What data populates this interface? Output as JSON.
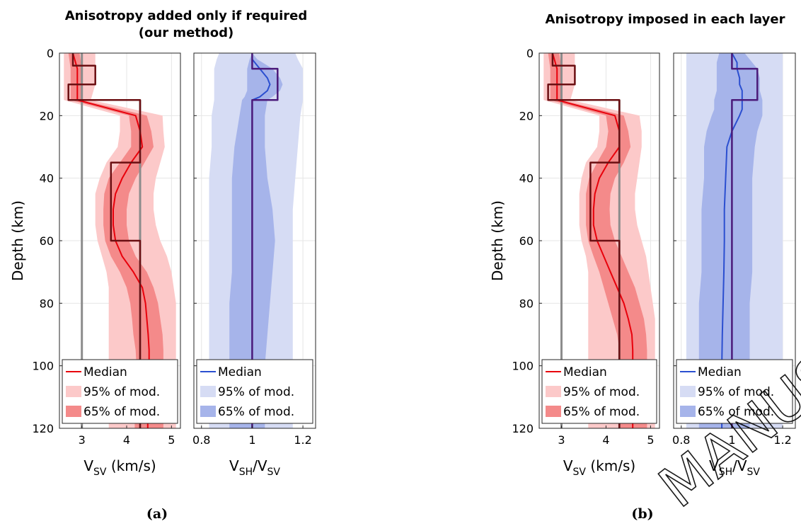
{
  "figure": {
    "titles": [
      [
        "Anisotropy added only if required",
        "(our method)"
      ],
      [
        "Anisotropy imposed in each layer"
      ]
    ],
    "panel_labels": [
      "(a)",
      "(b)"
    ],
    "watermark": "MANUSCRIPT"
  },
  "axes": {
    "ylabel": "Depth (km)",
    "depth_ticks": [
      "0",
      "20",
      "40",
      "60",
      "80",
      "100",
      "120"
    ],
    "vsv_xlabel": "V_SV (km/s)",
    "vsv_ticks": [
      "3",
      "4",
      "5"
    ],
    "aniso_xlabel": "V_SH/V_SV",
    "aniso_ticks": [
      "0.8",
      "1",
      "1.2"
    ]
  },
  "legend": {
    "median": "Median",
    "p95": "95% of mod.",
    "p65": "65% of mod."
  },
  "colors": {
    "vsv_median": "#e8000b",
    "vsv_band95": "#fcc9c9",
    "vsv_band65": "#f48a8a",
    "vsv_true": "#6b0f12",
    "vsv_initial": "#8c8c8c",
    "aniso_median": "#2b4fd0",
    "aniso_band95": "#d6dcf4",
    "aniso_band65": "#a6b4ea",
    "aniso_true": "#4b1a7a"
  },
  "chart_data": [
    {
      "panel": "a-left",
      "type": "area",
      "xlabel": "V_SV (km/s)",
      "ylabel": "Depth (km)",
      "xlim": [
        2.5,
        5.2
      ],
      "ylim": [
        120,
        0
      ],
      "grid": true,
      "legend_position": "bottom",
      "depth": [
        0,
        5,
        10,
        15,
        20,
        25,
        30,
        35,
        40,
        45,
        50,
        55,
        60,
        65,
        70,
        75,
        80,
        85,
        90,
        95,
        100,
        105,
        110,
        115,
        120
      ],
      "median": [
        2.8,
        2.9,
        2.9,
        2.9,
        4.2,
        4.3,
        4.35,
        4.1,
        3.9,
        3.75,
        3.7,
        3.7,
        3.75,
        3.9,
        4.15,
        4.35,
        4.42,
        4.45,
        4.48,
        4.5,
        4.5,
        4.48,
        4.47,
        4.47,
        4.47
      ],
      "band95": {
        "lo": [
          2.6,
          2.6,
          2.6,
          2.6,
          3.85,
          3.85,
          3.8,
          3.55,
          3.4,
          3.3,
          3.3,
          3.3,
          3.35,
          3.45,
          3.55,
          3.6,
          3.6,
          3.6,
          3.6,
          3.6,
          3.6,
          3.6,
          3.6,
          3.6,
          3.6
        ],
        "hi": [
          3.3,
          3.3,
          3.3,
          3.2,
          4.8,
          4.82,
          4.85,
          4.75,
          4.65,
          4.6,
          4.6,
          4.65,
          4.75,
          4.9,
          5.0,
          5.05,
          5.1,
          5.1,
          5.1,
          5.1,
          5.1,
          5.1,
          5.1,
          5.1,
          5.1
        ]
      },
      "band65": {
        "lo": [
          2.7,
          2.75,
          2.75,
          2.75,
          4.05,
          4.1,
          4.1,
          3.85,
          3.6,
          3.5,
          3.48,
          3.48,
          3.52,
          3.65,
          3.85,
          4.0,
          4.08,
          4.12,
          4.15,
          4.2,
          4.22,
          4.2,
          4.18,
          4.18,
          4.18
        ],
        "hi": [
          2.95,
          3.0,
          3.0,
          3.0,
          4.45,
          4.55,
          4.6,
          4.4,
          4.2,
          4.05,
          4.0,
          4.0,
          4.05,
          4.2,
          4.45,
          4.6,
          4.7,
          4.75,
          4.8,
          4.82,
          4.82,
          4.82,
          4.82,
          4.82,
          4.82
        ]
      },
      "true_model": {
        "depth": [
          0,
          4,
          4,
          10,
          10,
          15,
          15,
          35,
          35,
          60,
          60,
          120
        ],
        "value": [
          2.8,
          2.8,
          3.3,
          3.3,
          2.7,
          2.7,
          4.3,
          4.3,
          3.65,
          3.65,
          4.3,
          4.3
        ]
      },
      "initial_model": {
        "depth": [
          0,
          120
        ],
        "value": [
          3.0,
          3.0
        ],
        "second": {
          "depth": [
            15,
            120
          ],
          "value": [
            4.3,
            4.3
          ]
        }
      }
    },
    {
      "panel": "a-right",
      "type": "area",
      "xlabel": "V_SH/V_SV",
      "ylabel": "",
      "xlim": [
        0.77,
        1.25
      ],
      "ylim": [
        120,
        0
      ],
      "grid": true,
      "legend_position": "bottom",
      "depth": [
        0,
        2,
        5,
        8,
        10,
        12,
        14,
        15,
        20,
        30,
        40,
        50,
        60,
        70,
        80,
        90,
        100,
        110,
        120
      ],
      "median": [
        1.0,
        1.0,
        1.03,
        1.06,
        1.07,
        1.06,
        1.03,
        1.0,
        1.0,
        1.0,
        1.0,
        1.0,
        1.0,
        1.0,
        1.0,
        1.0,
        1.0,
        1.0,
        1.0
      ],
      "band95": {
        "lo": [
          0.87,
          0.86,
          0.85,
          0.85,
          0.85,
          0.85,
          0.85,
          0.85,
          0.84,
          0.84,
          0.83,
          0.83,
          0.83,
          0.83,
          0.83,
          0.83,
          0.83,
          0.83,
          0.83
        ],
        "hi": [
          1.17,
          1.18,
          1.2,
          1.2,
          1.2,
          1.2,
          1.2,
          1.2,
          1.19,
          1.18,
          1.17,
          1.16,
          1.16,
          1.16,
          1.16,
          1.16,
          1.16,
          1.16,
          1.16
        ]
      },
      "band65": {
        "lo": [
          1.0,
          0.99,
          0.98,
          0.98,
          0.98,
          0.98,
          0.97,
          0.96,
          0.95,
          0.93,
          0.92,
          0.92,
          0.92,
          0.92,
          0.91,
          0.91,
          0.91,
          0.91,
          0.91
        ],
        "hi": [
          1.0,
          1.02,
          1.08,
          1.11,
          1.12,
          1.11,
          1.08,
          1.06,
          1.05,
          1.05,
          1.06,
          1.08,
          1.09,
          1.08,
          1.07,
          1.06,
          1.05,
          1.05,
          1.05
        ]
      },
      "true_model": {
        "depth": [
          0,
          5,
          5,
          15,
          15,
          120
        ],
        "value": [
          1.0,
          1.0,
          1.1,
          1.1,
          1.0,
          1.0
        ]
      },
      "initial_model": {
        "depth": [
          0,
          120
        ],
        "value": [
          1.0,
          1.0
        ]
      }
    },
    {
      "panel": "b-left",
      "type": "area",
      "xlabel": "V_SV (km/s)",
      "ylabel": "Depth (km)",
      "xlim": [
        2.5,
        5.2
      ],
      "ylim": [
        120,
        0
      ],
      "grid": true,
      "legend_position": "bottom",
      "depth": [
        0,
        5,
        10,
        15,
        20,
        25,
        30,
        35,
        40,
        45,
        50,
        55,
        60,
        65,
        70,
        75,
        80,
        85,
        90,
        95,
        100,
        105,
        110,
        115,
        120
      ],
      "median": [
        2.8,
        2.9,
        2.9,
        2.9,
        4.2,
        4.3,
        4.3,
        4.05,
        3.85,
        3.75,
        3.72,
        3.72,
        3.8,
        3.95,
        4.1,
        4.25,
        4.4,
        4.5,
        4.58,
        4.6,
        4.6,
        4.6,
        4.6,
        4.6,
        4.6
      ],
      "band95": {
        "lo": [
          2.6,
          2.6,
          2.6,
          2.6,
          3.85,
          3.85,
          3.8,
          3.55,
          3.45,
          3.4,
          3.4,
          3.4,
          3.45,
          3.55,
          3.6,
          3.6,
          3.6,
          3.6,
          3.6,
          3.6,
          3.6,
          3.6,
          3.6,
          3.6,
          3.6
        ],
        "hi": [
          3.3,
          3.3,
          3.3,
          3.2,
          4.75,
          4.8,
          4.8,
          4.75,
          4.7,
          4.65,
          4.65,
          4.7,
          4.8,
          4.9,
          4.95,
          5.0,
          5.05,
          5.1,
          5.1,
          5.1,
          5.1,
          5.1,
          5.1,
          5.1,
          5.1
        ]
      },
      "band65": {
        "lo": [
          2.7,
          2.75,
          2.75,
          2.75,
          4.0,
          4.05,
          4.0,
          3.8,
          3.62,
          3.55,
          3.55,
          3.55,
          3.6,
          3.72,
          3.85,
          3.95,
          4.05,
          4.15,
          4.25,
          4.3,
          4.32,
          4.32,
          4.32,
          4.32,
          4.32
        ],
        "hi": [
          2.95,
          3.0,
          3.0,
          3.0,
          4.4,
          4.5,
          4.55,
          4.4,
          4.2,
          4.1,
          4.08,
          4.1,
          4.2,
          4.35,
          4.5,
          4.65,
          4.75,
          4.85,
          4.9,
          4.92,
          4.92,
          4.92,
          4.92,
          4.92,
          4.92
        ]
      },
      "true_model": {
        "depth": [
          0,
          4,
          4,
          10,
          10,
          15,
          15,
          35,
          35,
          60,
          60,
          120
        ],
        "value": [
          2.8,
          2.8,
          3.3,
          3.3,
          2.7,
          2.7,
          4.3,
          4.3,
          3.65,
          3.65,
          4.3,
          4.3
        ]
      },
      "initial_model": {
        "depth": [
          0,
          120
        ],
        "value": [
          3.0,
          3.0
        ],
        "second": {
          "depth": [
            15,
            120
          ],
          "value": [
            4.3,
            4.3
          ]
        }
      }
    },
    {
      "panel": "b-right",
      "type": "area",
      "xlabel": "V_SH/V_SV",
      "ylabel": "",
      "xlim": [
        0.77,
        1.25
      ],
      "ylim": [
        120,
        0
      ],
      "grid": true,
      "legend_position": "bottom",
      "depth": [
        0,
        3,
        5,
        8,
        10,
        12,
        15,
        18,
        20,
        25,
        30,
        40,
        50,
        60,
        70,
        80,
        90,
        100,
        110,
        120
      ],
      "median": [
        1.0,
        1.02,
        1.02,
        1.03,
        1.03,
        1.04,
        1.04,
        1.04,
        1.03,
        1.0,
        0.98,
        0.975,
        0.97,
        0.97,
        0.968,
        0.965,
        0.962,
        0.96,
        0.96,
        0.96
      ],
      "band95": {
        "lo": [
          0.82,
          0.82,
          0.82,
          0.82,
          0.82,
          0.82,
          0.82,
          0.82,
          0.82,
          0.82,
          0.82,
          0.82,
          0.82,
          0.82,
          0.82,
          0.82,
          0.82,
          0.82,
          0.82,
          0.82
        ],
        "hi": [
          1.2,
          1.2,
          1.2,
          1.2,
          1.2,
          1.2,
          1.2,
          1.2,
          1.2,
          1.2,
          1.2,
          1.2,
          1.2,
          1.2,
          1.2,
          1.2,
          1.2,
          1.2,
          1.2,
          1.2
        ]
      },
      "band65": {
        "lo": [
          0.95,
          0.94,
          0.94,
          0.94,
          0.94,
          0.94,
          0.93,
          0.93,
          0.92,
          0.9,
          0.89,
          0.89,
          0.88,
          0.88,
          0.88,
          0.87,
          0.87,
          0.87,
          0.87,
          0.87
        ],
        "hi": [
          1.05,
          1.08,
          1.1,
          1.11,
          1.11,
          1.11,
          1.12,
          1.12,
          1.12,
          1.1,
          1.09,
          1.08,
          1.08,
          1.08,
          1.08,
          1.07,
          1.07,
          1.07,
          1.07,
          1.07
        ]
      },
      "true_model": {
        "depth": [
          0,
          5,
          5,
          15,
          15,
          120
        ],
        "value": [
          1.0,
          1.0,
          1.1,
          1.1,
          1.0,
          1.0
        ]
      },
      "initial_model": {
        "depth": [
          0,
          120
        ],
        "value": [
          1.0,
          1.0
        ]
      }
    }
  ]
}
